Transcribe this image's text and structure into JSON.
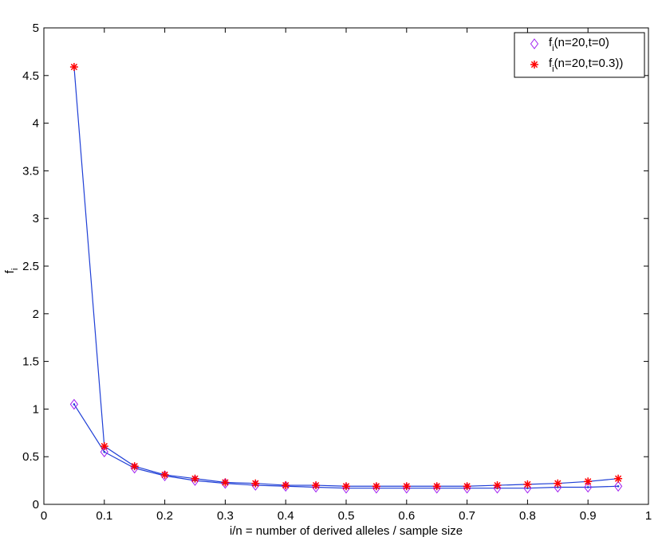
{
  "chart_data": {
    "type": "line",
    "title": "",
    "xlabel": "i/n = number of derived alleles / sample size",
    "ylabel": "f",
    "ylabel_subscript": "i",
    "xlim": [
      0,
      1
    ],
    "ylim": [
      0,
      5
    ],
    "x_ticks": [
      "0",
      "0.1",
      "0.2",
      "0.3",
      "0.4",
      "0.5",
      "0.6",
      "0.7",
      "0.8",
      "0.9",
      "1"
    ],
    "y_ticks": [
      "0",
      "0.5",
      "1",
      "1.5",
      "2",
      "2.5",
      "3",
      "3.5",
      "4",
      "4.5",
      "5"
    ],
    "grid": false,
    "legend_position": "top-right",
    "x": [
      0.05,
      0.1,
      0.15,
      0.2,
      0.25,
      0.3,
      0.35,
      0.4,
      0.45,
      0.5,
      0.55,
      0.6,
      0.65,
      0.7,
      0.75,
      0.8,
      0.85,
      0.9,
      0.95
    ],
    "line_color": "#1f3fd6",
    "series": [
      {
        "name": "f",
        "name_subscript": "i",
        "name_suffix": "(n=20,t=0)",
        "marker": "diamond",
        "color": "#a020f0",
        "values": [
          1.05,
          0.55,
          0.38,
          0.3,
          0.25,
          0.22,
          0.2,
          0.19,
          0.18,
          0.17,
          0.17,
          0.17,
          0.17,
          0.17,
          0.17,
          0.17,
          0.18,
          0.18,
          0.19
        ]
      },
      {
        "name": "f",
        "name_subscript": "i",
        "name_suffix": "(n=20,t=0.3))",
        "marker": "star",
        "color": "#ff0000",
        "values": [
          4.59,
          0.61,
          0.4,
          0.31,
          0.27,
          0.23,
          0.22,
          0.2,
          0.2,
          0.19,
          0.19,
          0.19,
          0.19,
          0.19,
          0.2,
          0.21,
          0.22,
          0.24,
          0.27
        ]
      }
    ]
  }
}
